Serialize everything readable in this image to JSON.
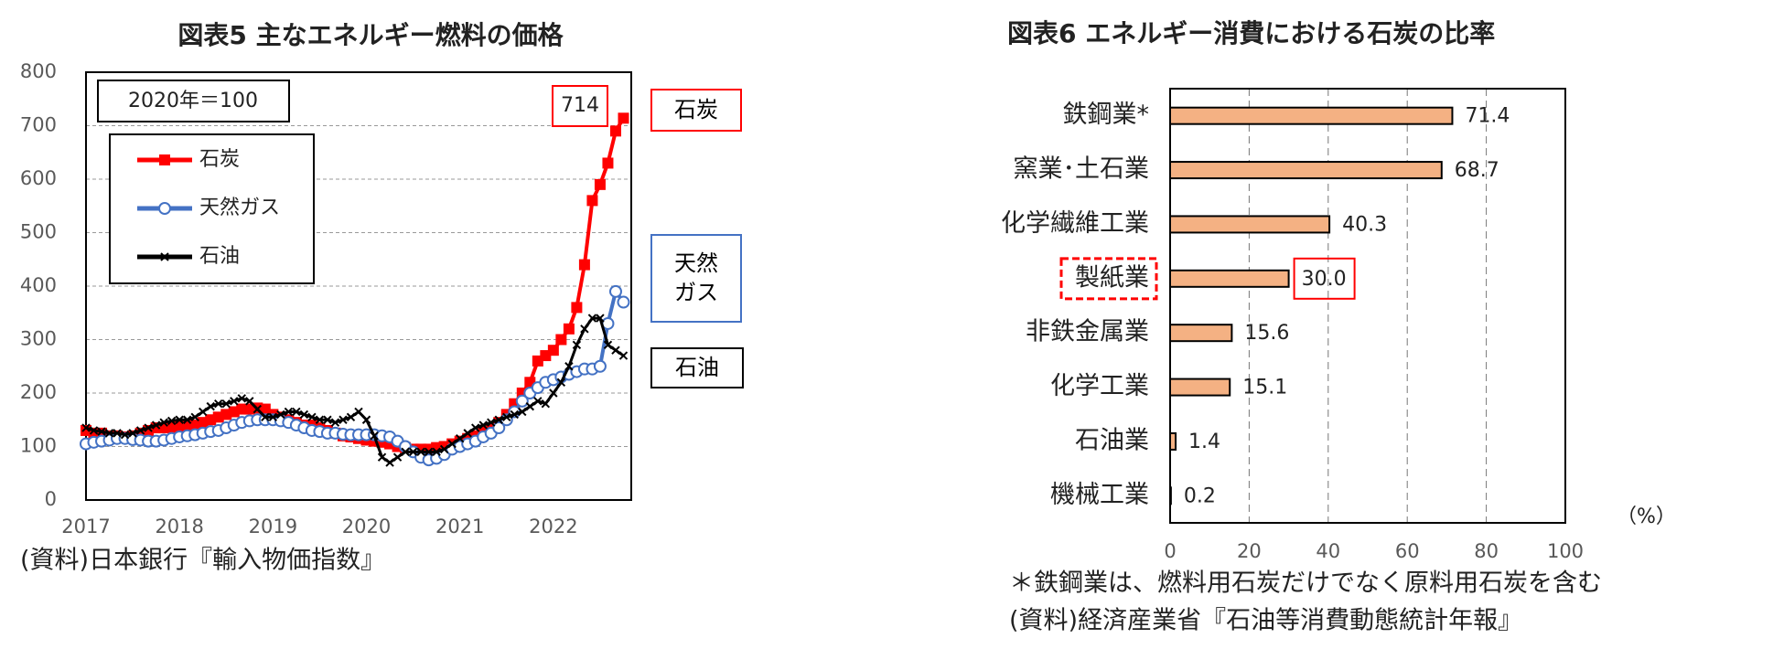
{
  "chart_data": [
    {
      "type": "line",
      "title": "図表5  主なエネルギー燃料の価格",
      "note": "2020年＝100",
      "source": "(資料)日本銀行『輸入物価指数』",
      "categories": [
        "2017",
        null,
        null,
        null,
        null,
        null,
        null,
        null,
        null,
        null,
        null,
        null,
        "2018",
        null,
        null,
        null,
        null,
        null,
        null,
        null,
        null,
        null,
        null,
        null,
        "2019",
        null,
        null,
        null,
        null,
        null,
        null,
        null,
        null,
        null,
        null,
        null,
        "2020",
        null,
        null,
        null,
        null,
        null,
        null,
        null,
        null,
        null,
        null,
        null,
        "2021",
        null,
        null,
        null,
        null,
        null,
        null,
        null,
        null,
        null,
        null,
        null,
        "2022",
        null,
        null,
        null,
        null,
        null,
        null,
        null,
        null,
        null
      ],
      "series": [
        {
          "name": "石炭",
          "color": "#ff0000",
          "marker": "square",
          "values": [
            130,
            125,
            125,
            120,
            120,
            118,
            120,
            125,
            130,
            135,
            135,
            135,
            138,
            140,
            140,
            145,
            150,
            155,
            160,
            165,
            170,
            170,
            172,
            170,
            160,
            155,
            150,
            145,
            140,
            140,
            135,
            130,
            125,
            120,
            118,
            115,
            112,
            110,
            108,
            105,
            100,
            98,
            95,
            95,
            95,
            98,
            100,
            105,
            110,
            115,
            120,
            128,
            135,
            145,
            160,
            180,
            200,
            220,
            260,
            270,
            280,
            300,
            320,
            360,
            440,
            560,
            590,
            630,
            690,
            714
          ]
        },
        {
          "name": "天然ガス",
          "color": "#4472c4",
          "marker": "circle",
          "values": [
            105,
            108,
            110,
            112,
            115,
            115,
            113,
            112,
            110,
            110,
            112,
            115,
            118,
            120,
            122,
            125,
            128,
            130,
            135,
            140,
            145,
            148,
            150,
            150,
            150,
            148,
            145,
            140,
            135,
            130,
            128,
            125,
            125,
            123,
            122,
            122,
            122,
            122,
            120,
            118,
            110,
            100,
            90,
            80,
            75,
            78,
            85,
            95,
            100,
            105,
            110,
            118,
            125,
            135,
            150,
            165,
            185,
            200,
            210,
            220,
            225,
            230,
            235,
            240,
            245,
            245,
            250,
            330,
            390,
            370
          ]
        },
        {
          "name": "石油",
          "color": "#000000",
          "marker": "cross",
          "values": [
            135,
            130,
            128,
            125,
            125,
            122,
            125,
            130,
            135,
            140,
            145,
            148,
            150,
            150,
            155,
            165,
            175,
            180,
            180,
            185,
            190,
            185,
            170,
            155,
            155,
            160,
            165,
            165,
            160,
            155,
            150,
            150,
            145,
            150,
            155,
            165,
            150,
            120,
            80,
            70,
            80,
            90,
            90,
            90,
            90,
            90,
            95,
            105,
            115,
            125,
            135,
            140,
            145,
            150,
            155,
            160,
            165,
            175,
            185,
            180,
            200,
            220,
            250,
            290,
            320,
            340,
            340,
            290,
            280,
            270
          ]
        }
      ],
      "ylim": [
        0,
        800
      ],
      "yticks": [
        0,
        100,
        200,
        300,
        400,
        500,
        600,
        700,
        800
      ],
      "grid": true
    },
    {
      "type": "hbar",
      "title": "図表6  エネルギー消費における石炭の比率",
      "categories": [
        "鉄鋼業*",
        "窯業･土石業",
        "化学繊維工業",
        "製紙業",
        "非鉄金属業",
        "化学工業",
        "石油業",
        "機械工業"
      ],
      "values": [
        71.4,
        68.7,
        40.3,
        30.0,
        15.6,
        15.1,
        1.4,
        0.2
      ],
      "value_labels": [
        "71.4",
        "68.7",
        "40.3",
        "30.0",
        "15.6",
        "15.1",
        "1.4",
        "0.2"
      ],
      "color": "#f4b183",
      "xlim": [
        0,
        100
      ],
      "xticks": [
        0,
        20,
        40,
        60,
        80,
        100
      ],
      "grid": true,
      "unit_label": "（%）",
      "notes": [
        "＊鉄鋼業は、燃料用石炭だけでなく原料用石炭を含む",
        "(資料)経済産業省『石油等消費動態統計年報』"
      ]
    }
  ]
}
